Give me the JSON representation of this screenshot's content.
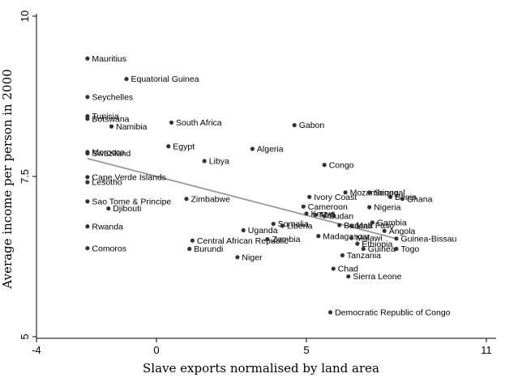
{
  "chart_data": {
    "type": "scatter",
    "xlabel": "Slave exports normalised by land area",
    "ylabel": "Average income per person in 2000",
    "xlim": [
      -4,
      11
    ],
    "ylim": [
      5,
      10
    ],
    "x_ticks": [
      {
        "value": -4,
        "label": "-4"
      },
      {
        "value": 0,
        "label": "0"
      },
      {
        "value": 5,
        "label": "5"
      },
      {
        "value": 11,
        "label": "11"
      }
    ],
    "y_ticks": [
      {
        "value": 5,
        "label": "5"
      },
      {
        "value": 7.5,
        "label": "7.5"
      },
      {
        "value": 10,
        "label": "10"
      }
    ],
    "grid": false,
    "legend": "none",
    "colors": {
      "points": "#333333",
      "fit_line": "#999999"
    },
    "fit_line": {
      "x": [
        -2.3,
        8.0
      ],
      "y": [
        7.78,
        6.53
      ]
    },
    "points": [
      {
        "x": -2.3,
        "y": 9.34,
        "label": "Mauritius"
      },
      {
        "x": -1.0,
        "y": 9.02,
        "label": "Equatorial Guinea"
      },
      {
        "x": -2.3,
        "y": 8.74,
        "label": "Seychelles"
      },
      {
        "x": -2.3,
        "y": 8.44,
        "label": "Tunisia"
      },
      {
        "x": -2.3,
        "y": 8.4,
        "label": "Botswana"
      },
      {
        "x": -1.5,
        "y": 8.28,
        "label": "Namibia"
      },
      {
        "x": 0.5,
        "y": 8.34,
        "label": "South Africa"
      },
      {
        "x": 4.6,
        "y": 8.3,
        "label": "Gabon"
      },
      {
        "x": 0.4,
        "y": 7.97,
        "label": "Egypt"
      },
      {
        "x": -2.3,
        "y": 7.88,
        "label": "Morocco"
      },
      {
        "x": -2.3,
        "y": 7.86,
        "label": "Swaziland"
      },
      {
        "x": 3.2,
        "y": 7.93,
        "label": "Algeria"
      },
      {
        "x": 1.6,
        "y": 7.74,
        "label": "Libya"
      },
      {
        "x": 5.6,
        "y": 7.68,
        "label": "Congo"
      },
      {
        "x": -2.3,
        "y": 7.49,
        "label": "Cape Verde Islands"
      },
      {
        "x": -2.3,
        "y": 7.41,
        "label": "Lesotho"
      },
      {
        "x": 1.0,
        "y": 7.15,
        "label": "Zimbabwe"
      },
      {
        "x": 5.1,
        "y": 7.18,
        "label": "Ivory Coast"
      },
      {
        "x": 6.3,
        "y": 7.25,
        "label": "Mozambique"
      },
      {
        "x": 7.1,
        "y": 7.25,
        "label": "Senegal"
      },
      {
        "x": 7.8,
        "y": 7.18,
        "label": "Benin"
      },
      {
        "x": 8.2,
        "y": 7.15,
        "label": "Ghana"
      },
      {
        "x": -2.3,
        "y": 7.11,
        "label": "Sao Tome & Principe"
      },
      {
        "x": -1.6,
        "y": 7.0,
        "label": "Djibouti"
      },
      {
        "x": 7.1,
        "y": 7.02,
        "label": "Nigeria"
      },
      {
        "x": 4.9,
        "y": 7.03,
        "label": "Cameroon"
      },
      {
        "x": 5.0,
        "y": 6.92,
        "label": "Kenya"
      },
      {
        "x": 5.3,
        "y": 6.9,
        "label": "Mali"
      },
      {
        "x": 5.6,
        "y": 6.88,
        "label": "Sudan"
      },
      {
        "x": -2.3,
        "y": 6.72,
        "label": "Rwanda"
      },
      {
        "x": 3.9,
        "y": 6.76,
        "label": "Somalia"
      },
      {
        "x": 4.2,
        "y": 6.73,
        "label": "Liberia"
      },
      {
        "x": 6.1,
        "y": 6.74,
        "label": "Burkina Faso"
      },
      {
        "x": 6.5,
        "y": 6.73,
        "label": "Mali"
      },
      {
        "x": 7.2,
        "y": 6.78,
        "label": "Gambia"
      },
      {
        "x": 7.6,
        "y": 6.65,
        "label": "Angola"
      },
      {
        "x": 2.9,
        "y": 6.66,
        "label": "Uganda"
      },
      {
        "x": 5.4,
        "y": 6.57,
        "label": "Madagascar"
      },
      {
        "x": 6.5,
        "y": 6.54,
        "label": "Malawi"
      },
      {
        "x": 8.0,
        "y": 6.53,
        "label": "Guinea-Bissau"
      },
      {
        "x": 1.2,
        "y": 6.5,
        "label": "Central African Republic"
      },
      {
        "x": 3.7,
        "y": 6.52,
        "label": "Zambia"
      },
      {
        "x": 6.7,
        "y": 6.45,
        "label": "Ethiopia"
      },
      {
        "x": 6.9,
        "y": 6.37,
        "label": "Guinea"
      },
      {
        "x": 8.0,
        "y": 6.37,
        "label": "Togo"
      },
      {
        "x": -2.3,
        "y": 6.38,
        "label": "Comoros"
      },
      {
        "x": 1.1,
        "y": 6.37,
        "label": "Burundi"
      },
      {
        "x": 2.7,
        "y": 6.24,
        "label": "Niger"
      },
      {
        "x": 6.2,
        "y": 6.27,
        "label": "Tanzania"
      },
      {
        "x": 5.9,
        "y": 6.06,
        "label": "Chad"
      },
      {
        "x": 6.4,
        "y": 5.94,
        "label": "Sierra Leone"
      },
      {
        "x": 5.8,
        "y": 5.38,
        "label": "Democratic Republic of Congo"
      }
    ]
  }
}
